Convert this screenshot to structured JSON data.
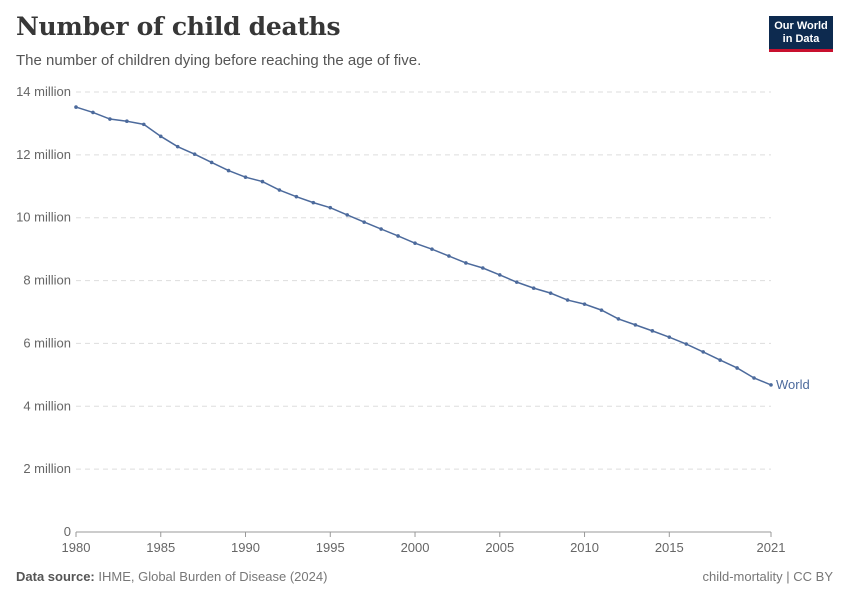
{
  "header": {
    "title": "Number of child deaths",
    "subtitle": "The number of children dying before reaching the age of five.",
    "logo": "Our World in Data"
  },
  "footer": {
    "source_label": "Data source:",
    "source": "IHME, Global Burden of Disease (2024)",
    "license": "child-mortality | CC BY"
  },
  "colors": {
    "series": "#4c6a9c",
    "grid": "#dddddd",
    "logo_bg": "#0d2a4f",
    "logo_accent": "#c8102e"
  },
  "chart_data": {
    "type": "line",
    "title": "Number of child deaths",
    "subtitle": "The number of children dying before reaching the age of five.",
    "xlim": [
      1980,
      2021
    ],
    "ylim": [
      0,
      14000000
    ],
    "x_ticks": [
      "1980",
      "1985",
      "1990",
      "1995",
      "2000",
      "2005",
      "2010",
      "2015",
      "2021"
    ],
    "y_ticks": [
      "0",
      "2 million",
      "4 million",
      "6 million",
      "8 million",
      "10 million",
      "12 million",
      "14 million"
    ],
    "grid": "horizontal dashed",
    "legend": "line-end label",
    "x": [
      1980,
      1981,
      1982,
      1983,
      1984,
      1985,
      1986,
      1987,
      1988,
      1989,
      1990,
      1991,
      1992,
      1993,
      1994,
      1995,
      1996,
      1997,
      1998,
      1999,
      2000,
      2001,
      2002,
      2003,
      2004,
      2005,
      2006,
      2007,
      2008,
      2009,
      2010,
      2011,
      2012,
      2013,
      2014,
      2015,
      2016,
      2017,
      2018,
      2019,
      2020,
      2021
    ],
    "series": [
      {
        "name": "World",
        "values": [
          13520000,
          13350000,
          13140000,
          13070000,
          12970000,
          12590000,
          12260000,
          12020000,
          11760000,
          11500000,
          11290000,
          11150000,
          10880000,
          10670000,
          10480000,
          10320000,
          10090000,
          9860000,
          9640000,
          9420000,
          9190000,
          9000000,
          8780000,
          8560000,
          8400000,
          8180000,
          7950000,
          7760000,
          7600000,
          7380000,
          7250000,
          7060000,
          6780000,
          6590000,
          6400000,
          6200000,
          5980000,
          5730000,
          5470000,
          5220000,
          4900000,
          4680000
        ]
      }
    ]
  }
}
